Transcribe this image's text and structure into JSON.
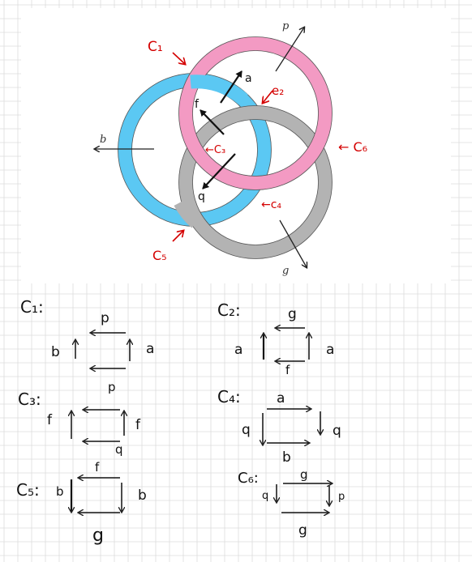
{
  "figure": {
    "ring_labels": {
      "p": "p",
      "b": "b",
      "g": "g"
    },
    "inner_labels": {
      "a": "a",
      "f": "f",
      "q": "q"
    },
    "cycle_labels": {
      "c1": "C₁",
      "c2": "e₂",
      "c3": "←C₃",
      "c4": "←c₄",
      "c5": "C₅",
      "c6": "← C₆"
    }
  },
  "colors": {
    "pink": "#f39ac3",
    "blue": "#5bc8f3",
    "gray": "#b3b3b3",
    "annotation": "#d40000",
    "grid": "#dcdcdc"
  },
  "squares": {
    "c1": {
      "name": "C₁:",
      "top": "p",
      "left": "b",
      "right": "a"
    },
    "c2": {
      "name": "C₂:",
      "top": "g",
      "left": "a",
      "right": "a",
      "bottom": "f"
    },
    "c3": {
      "name": "C₃:",
      "top": "p",
      "left": "f",
      "right": "f",
      "bottom": "q"
    },
    "c4": {
      "name": "C₄:",
      "top": "a",
      "left": "q",
      "right": "q",
      "bottom": "b"
    },
    "c5": {
      "name": "C₅:",
      "top": "f",
      "left": "b",
      "right": "b",
      "bottom": "g"
    },
    "c6": {
      "name": "C₆:",
      "top": "g",
      "left": "q",
      "right": "p",
      "bottom": "g"
    }
  }
}
